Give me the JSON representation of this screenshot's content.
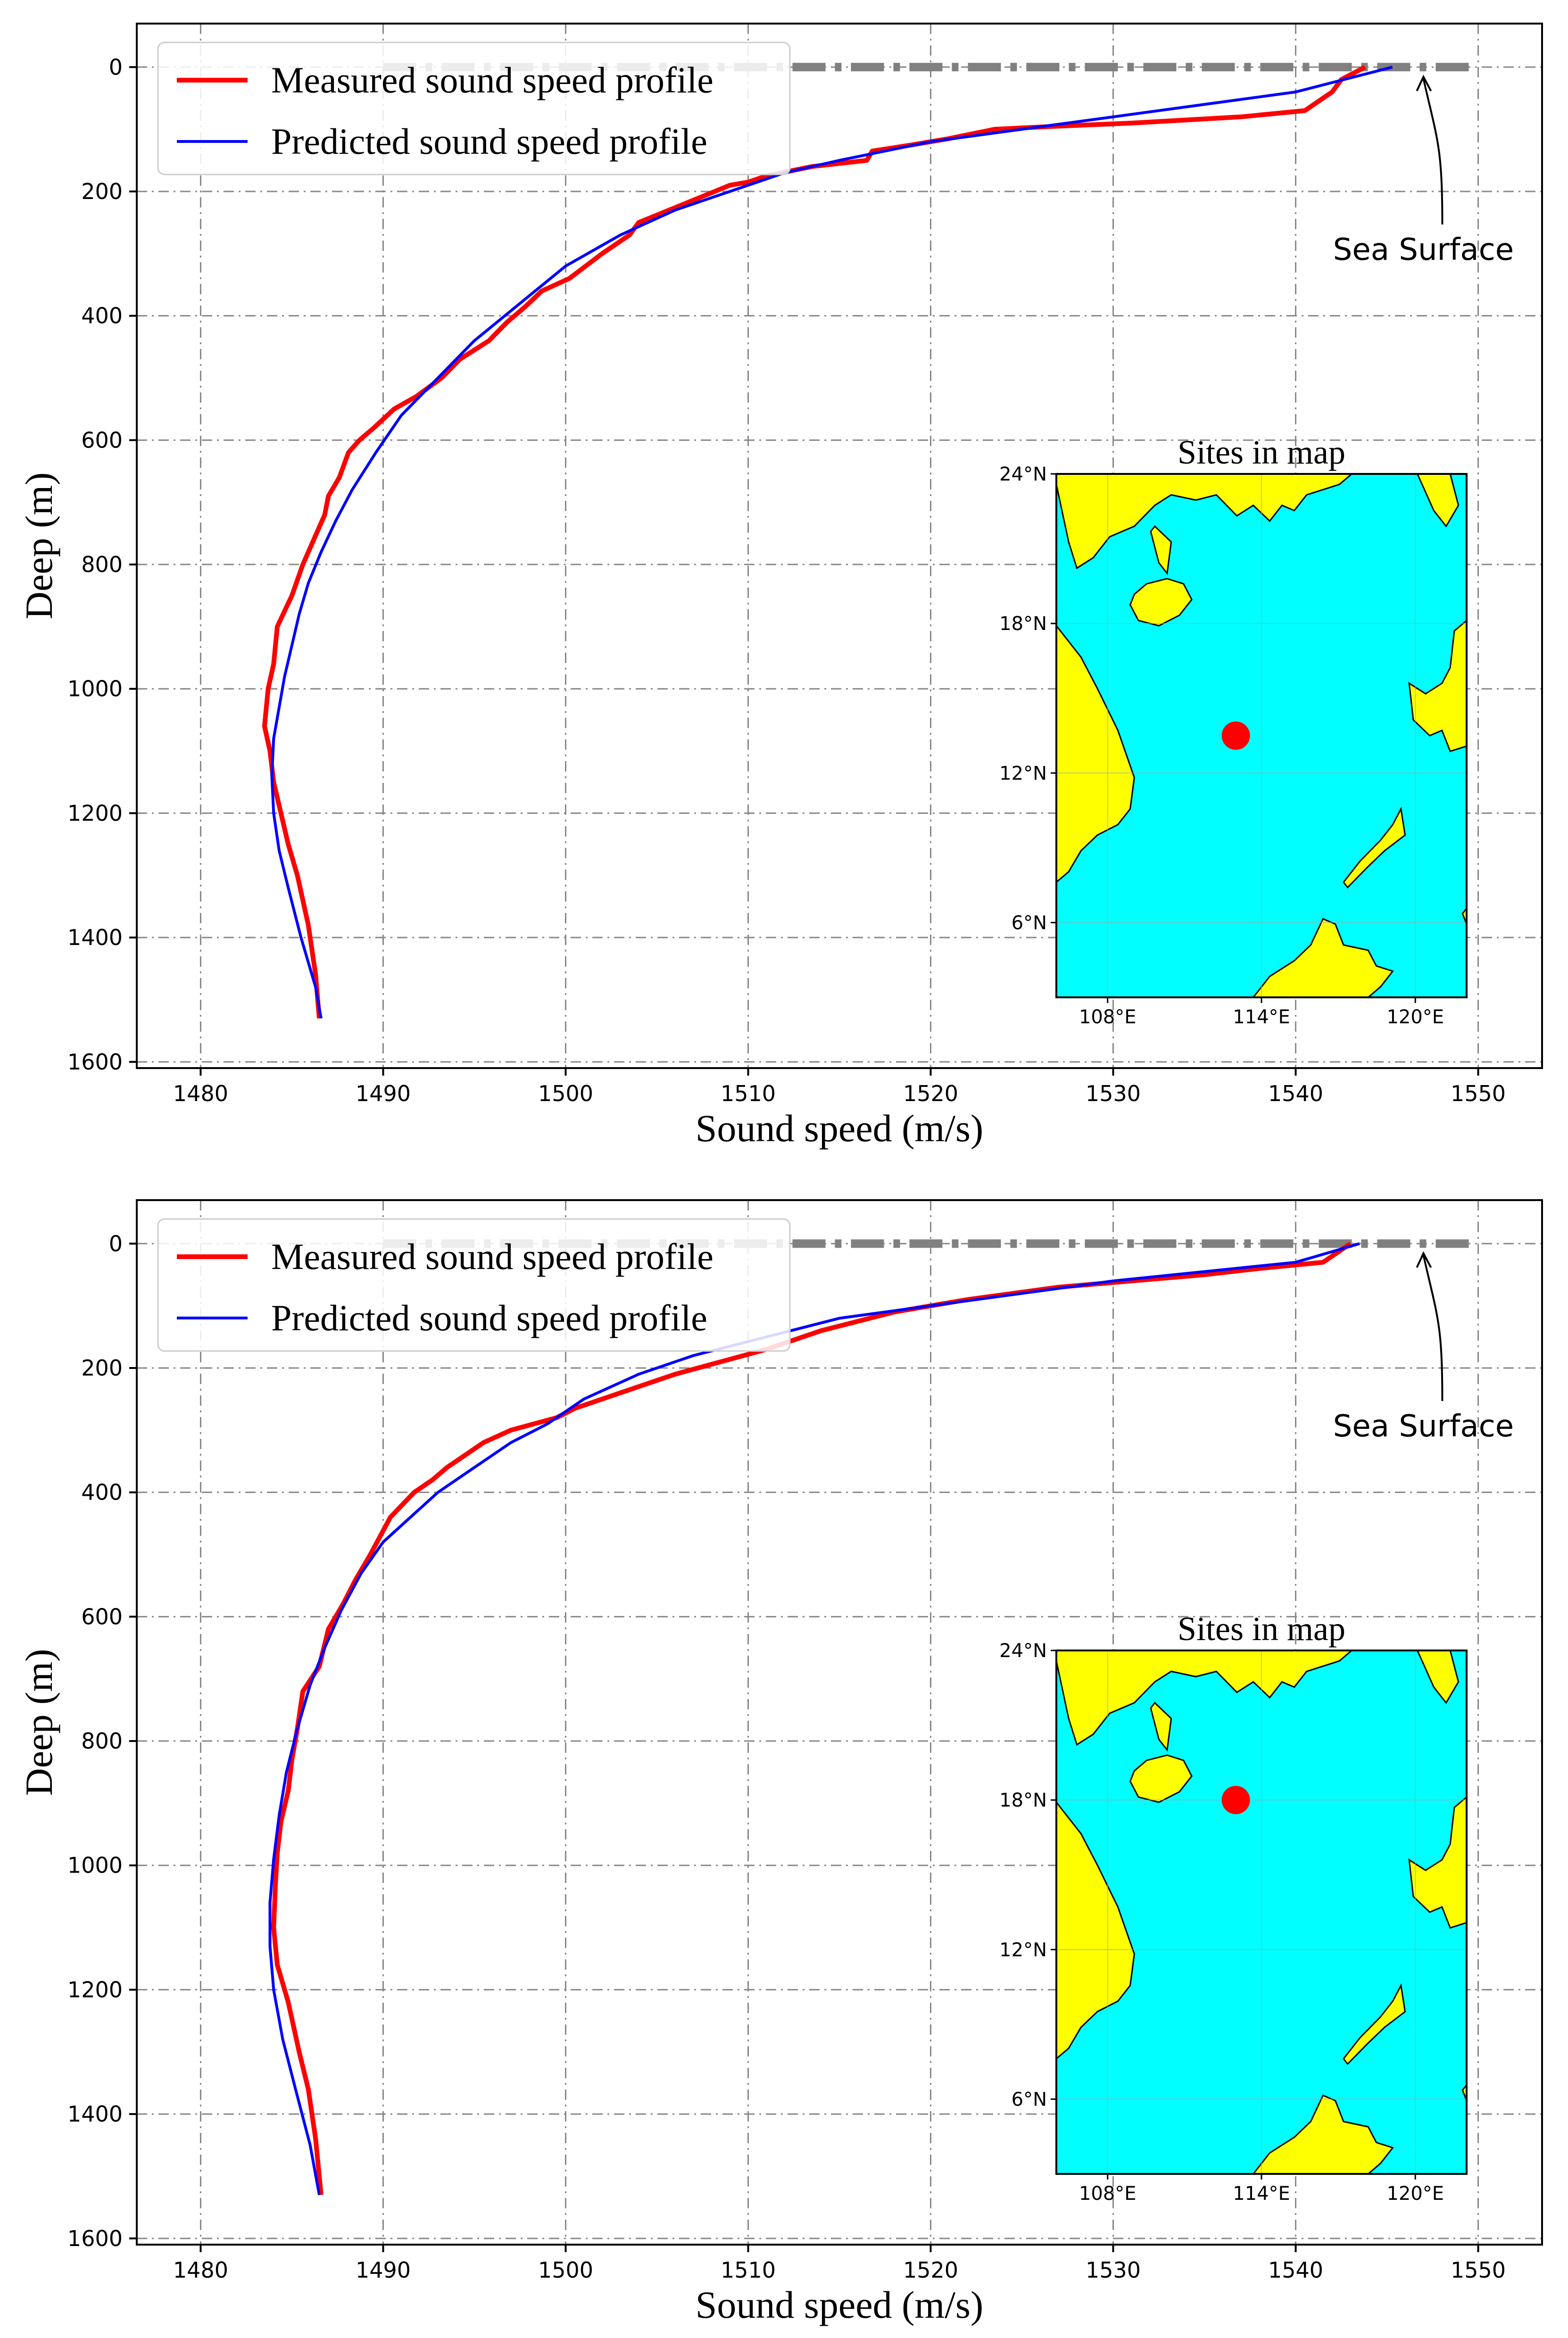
{
  "chart_data": [
    {
      "type": "line",
      "xlabel": "Sound speed (m/s)",
      "ylabel": "Deep (m)",
      "xlim": [
        1476.5,
        1553.5
      ],
      "ylim": [
        1610,
        -70
      ],
      "x_ticks": [
        1480,
        1490,
        1500,
        1510,
        1520,
        1530,
        1540,
        1550
      ],
      "y_ticks": [
        0,
        200,
        400,
        600,
        800,
        1000,
        1200,
        1400,
        1600
      ],
      "grid": true,
      "legend_position": "top-left",
      "series": [
        {
          "name": "Measured sound speed profile",
          "color": "#ff0000",
          "x": [
            1543.8,
            1542.5,
            1542.0,
            1540.5,
            1537.0,
            1531.0,
            1527.0,
            1523.5,
            1521.0,
            1519.0,
            1516.8,
            1516.5,
            1513.5,
            1511.0,
            1510.0,
            1509.0,
            1506.5,
            1504.0,
            1503.5,
            1502.0,
            1500.2,
            1498.7,
            1497.8,
            1496.8,
            1495.8,
            1494.2,
            1493.2,
            1491.8,
            1490.6,
            1489.5,
            1488.7,
            1488.1,
            1487.6,
            1487.0,
            1486.8,
            1486.2,
            1485.6,
            1485.0,
            1484.2,
            1484.0,
            1483.7,
            1483.5,
            1483.8,
            1484.0,
            1484.4,
            1484.8,
            1485.3,
            1485.9,
            1486.3,
            1486.5
          ],
          "y": [
            0,
            20,
            40,
            70,
            80,
            90,
            95,
            100,
            115,
            125,
            135,
            150,
            160,
            175,
            185,
            190,
            220,
            250,
            270,
            300,
            340,
            360,
            385,
            410,
            440,
            470,
            500,
            530,
            550,
            580,
            600,
            620,
            660,
            690,
            720,
            760,
            800,
            850,
            900,
            960,
            1000,
            1060,
            1100,
            1150,
            1200,
            1250,
            1300,
            1380,
            1460,
            1530
          ]
        },
        {
          "name": "Predicted sound speed profile",
          "color": "#0000ff",
          "x": [
            1545.3,
            1540.0,
            1535.0,
            1530.0,
            1525.0,
            1520.0,
            1515.0,
            1512.0,
            1509.0,
            1506.0,
            1503.0,
            1500.0,
            1497.5,
            1495.0,
            1493.0,
            1491.0,
            1489.6,
            1488.3,
            1487.4,
            1486.6,
            1485.9,
            1485.4,
            1485.0,
            1484.6,
            1484.3,
            1484.0,
            1483.9,
            1484.0,
            1484.3,
            1484.8,
            1485.5,
            1486.3,
            1486.6
          ],
          "y": [
            0,
            40,
            60,
            80,
            100,
            120,
            150,
            170,
            200,
            230,
            270,
            320,
            380,
            440,
            500,
            560,
            620,
            680,
            730,
            780,
            830,
            880,
            930,
            980,
            1030,
            1080,
            1140,
            1200,
            1260,
            1320,
            1400,
            1480,
            1530
          ]
        }
      ],
      "annotations": [
        {
          "text": "Sea Surface",
          "x": 1547.0,
          "y": 310,
          "arrow_to": [
            1547.0,
            5
          ]
        }
      ],
      "reference_line": {
        "label": "sea surface level",
        "y": 0,
        "color": "#808080"
      },
      "inset_map": {
        "title": "Sites in map",
        "x_ticks": [
          "108°E",
          "114°E",
          "120°E"
        ],
        "y_ticks": [
          "24°N",
          "18°N",
          "12°N",
          "6°N"
        ],
        "lon_range": [
          106.0,
          122.0
        ],
        "lat_range": [
          3.0,
          24.0
        ],
        "land_color": "#ffff00",
        "sea_color": "#00ffff",
        "site": {
          "lon": 113.0,
          "lat": 13.5,
          "color": "#ff0000"
        }
      }
    },
    {
      "type": "line",
      "xlabel": "Sound speed (m/s)",
      "ylabel": "Deep (m)",
      "xlim": [
        1476.5,
        1553.5
      ],
      "ylim": [
        1610,
        -70
      ],
      "x_ticks": [
        1480,
        1490,
        1500,
        1510,
        1520,
        1530,
        1540,
        1550
      ],
      "y_ticks": [
        0,
        200,
        400,
        600,
        800,
        1000,
        1200,
        1400,
        1600
      ],
      "grid": true,
      "legend_position": "top-left",
      "series": [
        {
          "name": "Measured sound speed profile",
          "color": "#ff0000",
          "x": [
            1543.0,
            1542.0,
            1541.5,
            1538.0,
            1535.0,
            1531.0,
            1527.0,
            1522.0,
            1518.0,
            1514.0,
            1511.0,
            1508.5,
            1506.0,
            1504.0,
            1502.0,
            1500.5,
            1499.5,
            1497.0,
            1495.5,
            1494.5,
            1493.5,
            1492.7,
            1491.7,
            1490.4,
            1489.3,
            1488.5,
            1487.8,
            1487.0,
            1486.5,
            1485.6,
            1485.3,
            1485.0,
            1484.8,
            1484.4,
            1484.2,
            1484.1,
            1484.0,
            1484.2,
            1484.8,
            1485.4,
            1485.9,
            1486.3,
            1486.6
          ],
          "y": [
            0,
            20,
            30,
            40,
            50,
            60,
            70,
            90,
            110,
            140,
            170,
            190,
            210,
            230,
            250,
            265,
            280,
            300,
            320,
            340,
            360,
            380,
            400,
            440,
            500,
            540,
            580,
            620,
            680,
            720,
            780,
            830,
            880,
            930,
            980,
            1030,
            1100,
            1160,
            1220,
            1300,
            1360,
            1440,
            1530
          ]
        },
        {
          "name": "Predicted sound speed profile",
          "color": "#0000ff",
          "x": [
            1543.5,
            1540.0,
            1535.0,
            1530.0,
            1525.0,
            1520.0,
            1515.0,
            1511.0,
            1507.0,
            1504.0,
            1501.0,
            1499.0,
            1497.0,
            1495.0,
            1493.0,
            1491.5,
            1490.0,
            1488.8,
            1487.7,
            1486.8,
            1486.0,
            1485.3,
            1484.7,
            1484.3,
            1484.0,
            1483.8,
            1483.8,
            1484.0,
            1484.5,
            1485.2,
            1486.0,
            1486.5
          ],
          "y": [
            0,
            30,
            45,
            60,
            80,
            100,
            120,
            150,
            180,
            210,
            250,
            290,
            320,
            360,
            400,
            440,
            480,
            530,
            590,
            650,
            710,
            780,
            850,
            920,
            990,
            1060,
            1130,
            1200,
            1280,
            1360,
            1450,
            1530
          ]
        }
      ],
      "annotations": [
        {
          "text": "Sea Surface",
          "x": 1547.0,
          "y": 310,
          "arrow_to": [
            1547.0,
            5
          ]
        }
      ],
      "reference_line": {
        "label": "sea surface level",
        "y": 0,
        "color": "#808080"
      },
      "inset_map": {
        "title": "Sites in map",
        "x_ticks": [
          "108°E",
          "114°E",
          "120°E"
        ],
        "y_ticks": [
          "24°N",
          "18°N",
          "12°N",
          "6°N"
        ],
        "lon_range": [
          106.0,
          122.0
        ],
        "lat_range": [
          3.0,
          24.0
        ],
        "land_color": "#ffff00",
        "sea_color": "#00ffff",
        "site": {
          "lon": 113.0,
          "lat": 18.0,
          "color": "#ff0000"
        }
      }
    }
  ]
}
